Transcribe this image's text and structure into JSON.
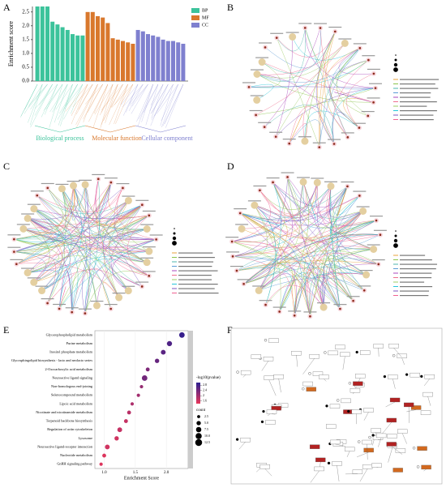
{
  "panels": {
    "a": "A",
    "b": "B",
    "c": "C",
    "d": "D",
    "e": "E",
    "f": "F"
  },
  "chart_data": [
    {
      "type": "bar",
      "ylabel": "Enrichment score",
      "ylim": [
        0,
        2.7
      ],
      "yticks": [
        {
          "value": 0,
          "label": "0.0"
        },
        0.5,
        {
          "value": 1,
          "label": "1.0"
        },
        1.5,
        {
          "value": 2,
          "label": "2.0"
        },
        2.5
      ],
      "groups": [
        "Biological process",
        "Molecular function",
        "Cellular component"
      ],
      "series": [
        {
          "name": "BP",
          "color": "#3cc39b",
          "values": [
            2.7,
            2.7,
            2.7,
            2.15,
            2.05,
            1.95,
            1.85,
            1.7,
            1.65,
            1.65
          ]
        },
        {
          "name": "MF",
          "color": "#d9782d",
          "values": [
            2.5,
            2.5,
            2.35,
            2.3,
            2.1,
            1.55,
            1.5,
            1.45,
            1.4,
            1.35
          ]
        },
        {
          "name": "CC",
          "color": "#7f80cf",
          "values": [
            1.85,
            1.8,
            1.7,
            1.65,
            1.6,
            1.5,
            1.45,
            1.45,
            1.4,
            1.35
          ]
        }
      ]
    },
    {
      "type": "dot",
      "xlabel": "Enrichment Score",
      "xlim": [
        0.85,
        2.35
      ],
      "xticks": [
        {
          "value": 1,
          "label": "1.0"
        },
        1.5,
        {
          "value": 2,
          "label": "2.0"
        }
      ],
      "categories": [
        "Glycerophospholipid metabolism",
        "Purine metabolism",
        "Inositol phosphate metabolism",
        "Glycosphingolipid biosynthesis - lacto and neolacto series",
        "2-Oxocarboxylic acid metabolism",
        "Neuroactive ligand signaling",
        "Non-homologous end-joining",
        "Selenocompound metabolism",
        "Lipoic acid metabolism",
        "Nicotinate and nicotinamide metabolism",
        "Terpenoid backbone biosynthesis",
        "Regulation of actin cytoskeleton",
        "Lysosome",
        "Neuroactive ligand-receptor interaction",
        "Nucleotide metabolism",
        "GnRH signaling pathway"
      ],
      "values": [
        2.25,
        2.05,
        1.95,
        1.85,
        1.7,
        1.65,
        1.6,
        1.55,
        1.45,
        1.4,
        1.35,
        1.25,
        1.2,
        1.05,
        1.0,
        0.95
      ],
      "color_values": [
        2.9,
        2.7,
        2.6,
        2.5,
        2.3,
        2.4,
        2.1,
        2.0,
        1.9,
        1.8,
        1.7,
        1.7,
        1.6,
        1.6,
        1.5,
        1.5
      ],
      "color_title": "-log10(pvalue)",
      "color_lim": [
        1.4,
        3.0
      ],
      "color_ticks": [
        {
          "value": 1.6,
          "label": "1.6"
        },
        2.0,
        2.4,
        2.8
      ],
      "colors": [
        "#e8375a",
        "#2b1d8f"
      ],
      "size_values": [
        8,
        7,
        6,
        5,
        4,
        8,
        3,
        3,
        3,
        4,
        4,
        6,
        5,
        6,
        4,
        3
      ],
      "size_title": "count",
      "size_ticks": [
        2.5,
        {
          "value": 5,
          "label": "5.0"
        },
        7.5,
        {
          "value": 10,
          "label": "10.0"
        },
        12.5
      ]
    }
  ]
}
